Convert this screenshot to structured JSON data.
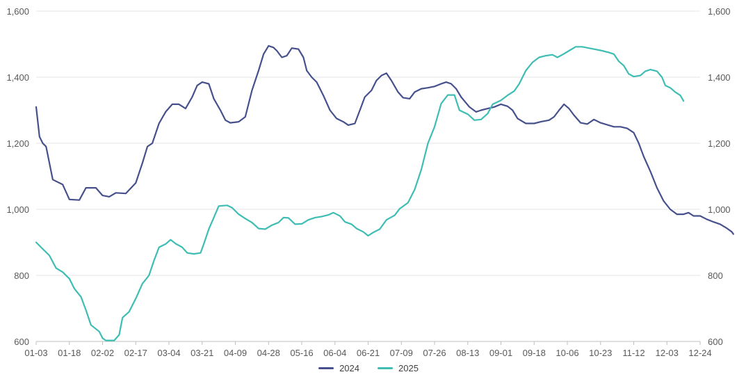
{
  "chart_data": {
    "type": "line",
    "title": "",
    "xlabel": "",
    "ylabel": "",
    "ylim": [
      600,
      1600
    ],
    "y_ticks": [
      600,
      800,
      1000,
      1200,
      1400,
      1600
    ],
    "y_tick_labels": [
      "600",
      "800",
      "1,000",
      "1,200",
      "1,400",
      "1,600"
    ],
    "y_axis_right": true,
    "grid": "horizontal",
    "legend": "bottom-center",
    "x_tick_labels": [
      "01-03",
      "01-18",
      "02-02",
      "02-17",
      "03-04",
      "03-21",
      "04-09",
      "04-28",
      "05-16",
      "06-04",
      "06-21",
      "07-09",
      "07-26",
      "08-13",
      "09-01",
      "09-18",
      "10-06",
      "10-23",
      "11-12",
      "12-03",
      "12-24"
    ],
    "series": [
      {
        "name": "2024",
        "color": "#46508c",
        "points": [
          [
            0,
            1310
          ],
          [
            0.1,
            1220
          ],
          [
            0.2,
            1200
          ],
          [
            0.3,
            1190
          ],
          [
            0.5,
            1090
          ],
          [
            0.8,
            1075
          ],
          [
            1.0,
            1030
          ],
          [
            1.3,
            1028
          ],
          [
            1.5,
            1065
          ],
          [
            1.8,
            1065
          ],
          [
            2.0,
            1042
          ],
          [
            2.2,
            1038
          ],
          [
            2.4,
            1050
          ],
          [
            2.7,
            1048
          ],
          [
            3.0,
            1080
          ],
          [
            3.2,
            1140
          ],
          [
            3.35,
            1190
          ],
          [
            3.5,
            1200
          ],
          [
            3.7,
            1260
          ],
          [
            3.9,
            1295
          ],
          [
            4.1,
            1318
          ],
          [
            4.3,
            1318
          ],
          [
            4.5,
            1305
          ],
          [
            4.7,
            1340
          ],
          [
            4.85,
            1375
          ],
          [
            5.0,
            1385
          ],
          [
            5.2,
            1380
          ],
          [
            5.35,
            1335
          ],
          [
            5.55,
            1300
          ],
          [
            5.7,
            1270
          ],
          [
            5.85,
            1262
          ],
          [
            6.1,
            1265
          ],
          [
            6.3,
            1280
          ],
          [
            6.5,
            1360
          ],
          [
            6.7,
            1420
          ],
          [
            6.85,
            1470
          ],
          [
            7.0,
            1495
          ],
          [
            7.15,
            1490
          ],
          [
            7.25,
            1480
          ],
          [
            7.4,
            1460
          ],
          [
            7.55,
            1465
          ],
          [
            7.7,
            1488
          ],
          [
            7.9,
            1485
          ],
          [
            8.05,
            1460
          ],
          [
            8.15,
            1420
          ],
          [
            8.3,
            1400
          ],
          [
            8.45,
            1385
          ],
          [
            8.65,
            1345
          ],
          [
            8.85,
            1300
          ],
          [
            9.05,
            1275
          ],
          [
            9.25,
            1265
          ],
          [
            9.4,
            1255
          ],
          [
            9.6,
            1260
          ],
          [
            9.75,
            1300
          ],
          [
            9.9,
            1340
          ],
          [
            10.1,
            1360
          ],
          [
            10.25,
            1390
          ],
          [
            10.4,
            1405
          ],
          [
            10.55,
            1412
          ],
          [
            10.7,
            1390
          ],
          [
            10.9,
            1355
          ],
          [
            11.05,
            1338
          ],
          [
            11.25,
            1335
          ],
          [
            11.4,
            1355
          ],
          [
            11.6,
            1365
          ],
          [
            11.8,
            1368
          ],
          [
            12.0,
            1372
          ],
          [
            12.2,
            1380
          ],
          [
            12.35,
            1385
          ],
          [
            12.5,
            1380
          ],
          [
            12.65,
            1365
          ],
          [
            12.8,
            1340
          ],
          [
            13.05,
            1310
          ],
          [
            13.25,
            1295
          ],
          [
            13.4,
            1300
          ],
          [
            13.6,
            1305
          ],
          [
            13.8,
            1310
          ],
          [
            14.0,
            1318
          ],
          [
            14.2,
            1312
          ],
          [
            14.35,
            1300
          ],
          [
            14.5,
            1275
          ],
          [
            14.75,
            1260
          ],
          [
            15.0,
            1260
          ],
          [
            15.2,
            1265
          ],
          [
            15.45,
            1270
          ],
          [
            15.6,
            1280
          ],
          [
            15.75,
            1300
          ],
          [
            15.9,
            1318
          ],
          [
            16.05,
            1305
          ],
          [
            16.2,
            1285
          ],
          [
            16.4,
            1262
          ],
          [
            16.6,
            1258
          ],
          [
            16.8,
            1272
          ],
          [
            17.0,
            1262
          ],
          [
            17.2,
            1256
          ],
          [
            17.4,
            1250
          ],
          [
            17.6,
            1250
          ],
          [
            17.8,
            1245
          ],
          [
            18.0,
            1232
          ],
          [
            18.15,
            1200
          ],
          [
            18.3,
            1160
          ],
          [
            18.5,
            1115
          ],
          [
            18.7,
            1065
          ],
          [
            18.9,
            1025
          ],
          [
            19.1,
            1000
          ],
          [
            19.3,
            985
          ],
          [
            19.5,
            985
          ],
          [
            19.65,
            990
          ],
          [
            19.8,
            980
          ],
          [
            20.0,
            980
          ],
          [
            20.2,
            970
          ],
          [
            20.4,
            962
          ],
          [
            20.6,
            955
          ],
          [
            20.8,
            943
          ],
          [
            20.95,
            932
          ],
          [
            21.0,
            925
          ]
        ]
      },
      {
        "name": "2025",
        "color": "#3dbdb3",
        "points": [
          [
            0,
            900
          ],
          [
            0.2,
            880
          ],
          [
            0.4,
            860
          ],
          [
            0.6,
            822
          ],
          [
            0.8,
            810
          ],
          [
            1.0,
            790
          ],
          [
            1.15,
            760
          ],
          [
            1.35,
            735
          ],
          [
            1.5,
            695
          ],
          [
            1.65,
            650
          ],
          [
            1.9,
            630
          ],
          [
            2.0,
            610
          ],
          [
            2.1,
            603
          ],
          [
            2.35,
            603
          ],
          [
            2.5,
            620
          ],
          [
            2.6,
            672
          ],
          [
            2.8,
            690
          ],
          [
            3.0,
            730
          ],
          [
            3.2,
            775
          ],
          [
            3.4,
            800
          ],
          [
            3.55,
            845
          ],
          [
            3.7,
            885
          ],
          [
            3.9,
            895
          ],
          [
            4.05,
            908
          ],
          [
            4.2,
            896
          ],
          [
            4.4,
            885
          ],
          [
            4.55,
            868
          ],
          [
            4.75,
            865
          ],
          [
            4.95,
            868
          ],
          [
            5.05,
            895
          ],
          [
            5.2,
            940
          ],
          [
            5.35,
            975
          ],
          [
            5.5,
            1010
          ],
          [
            5.75,
            1012
          ],
          [
            5.9,
            1005
          ],
          [
            6.1,
            985
          ],
          [
            6.3,
            972
          ],
          [
            6.5,
            960
          ],
          [
            6.7,
            942
          ],
          [
            6.9,
            940
          ],
          [
            7.1,
            952
          ],
          [
            7.3,
            960
          ],
          [
            7.45,
            975
          ],
          [
            7.6,
            974
          ],
          [
            7.8,
            955
          ],
          [
            8.0,
            956
          ],
          [
            8.2,
            968
          ],
          [
            8.4,
            975
          ],
          [
            8.6,
            978
          ],
          [
            8.8,
            983
          ],
          [
            8.95,
            990
          ],
          [
            9.15,
            980
          ],
          [
            9.3,
            962
          ],
          [
            9.5,
            955
          ],
          [
            9.65,
            942
          ],
          [
            9.85,
            932
          ],
          [
            10.0,
            920
          ],
          [
            10.15,
            930
          ],
          [
            10.35,
            940
          ],
          [
            10.55,
            968
          ],
          [
            10.8,
            982
          ],
          [
            10.95,
            1002
          ],
          [
            11.2,
            1020
          ],
          [
            11.4,
            1060
          ],
          [
            11.6,
            1120
          ],
          [
            11.8,
            1200
          ],
          [
            12.0,
            1250
          ],
          [
            12.2,
            1320
          ],
          [
            12.4,
            1346
          ],
          [
            12.6,
            1346
          ],
          [
            12.75,
            1300
          ],
          [
            13.0,
            1288
          ],
          [
            13.2,
            1270
          ],
          [
            13.4,
            1272
          ],
          [
            13.6,
            1290
          ],
          [
            13.75,
            1318
          ],
          [
            14.0,
            1330
          ],
          [
            14.2,
            1345
          ],
          [
            14.4,
            1358
          ],
          [
            14.55,
            1380
          ],
          [
            14.75,
            1420
          ],
          [
            14.95,
            1445
          ],
          [
            15.15,
            1460
          ],
          [
            15.35,
            1465
          ],
          [
            15.55,
            1468
          ],
          [
            15.7,
            1460
          ],
          [
            15.85,
            1468
          ],
          [
            16.05,
            1480
          ],
          [
            16.25,
            1492
          ],
          [
            16.45,
            1492
          ],
          [
            16.65,
            1488
          ],
          [
            16.85,
            1484
          ],
          [
            17.05,
            1480
          ],
          [
            17.25,
            1475
          ],
          [
            17.4,
            1470
          ],
          [
            17.55,
            1448
          ],
          [
            17.7,
            1435
          ],
          [
            17.85,
            1410
          ],
          [
            18.0,
            1402
          ],
          [
            18.2,
            1405
          ],
          [
            18.35,
            1418
          ],
          [
            18.5,
            1423
          ],
          [
            18.7,
            1418
          ],
          [
            18.85,
            1400
          ],
          [
            18.95,
            1375
          ],
          [
            19.1,
            1368
          ],
          [
            19.25,
            1355
          ],
          [
            19.4,
            1345
          ],
          [
            19.5,
            1328
          ]
        ]
      }
    ]
  }
}
